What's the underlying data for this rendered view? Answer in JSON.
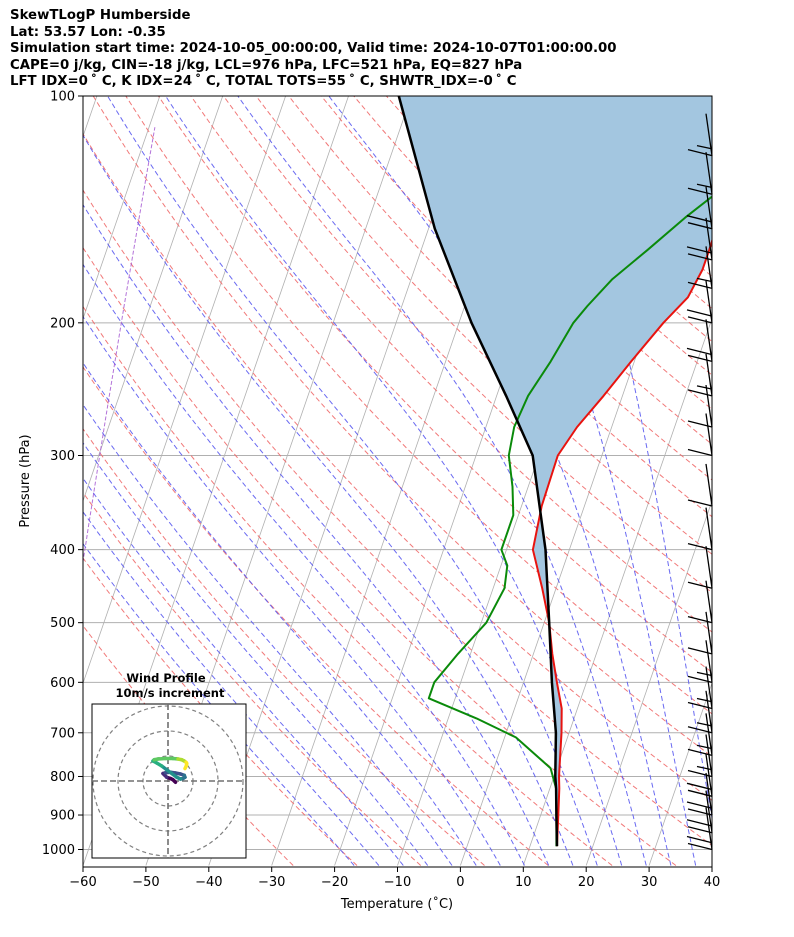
{
  "header": {
    "line1": "SkewTLogP Humberside",
    "line2": "Lat: 53.57   Lon: -0.35",
    "line3": "Simulation start time: 2024-10-05_00:00:00, Valid time: 2024-10-07T01:00:00.00",
    "line4": "CAPE=0 j/kg, CIN=-18 j/kg, LCL=976 hPa, LFC=521 hPa, EQ=827 hPa",
    "line5": "LFT IDX=0 ˚ C, K IDX=24 ˚ C, TOTAL TOTS=55 ˚ C, SHWTR_IDX=-0 ˚ C"
  },
  "chart_data": {
    "type": "skewt-logp",
    "title": "SkewTLogP Humberside",
    "xlabel": "Temperature (˚C)",
    "ylabel": "Pressure (hPa)",
    "xlim": [
      -60,
      40
    ],
    "ylim_hpa": [
      1050,
      100
    ],
    "x_ticks": [
      "−60",
      "−50",
      "−40",
      "−30",
      "−20",
      "−10",
      "0",
      "10",
      "20",
      "30",
      "40"
    ],
    "x_tick_values": [
      -60,
      -50,
      -40,
      -30,
      -20,
      -10,
      0,
      10,
      20,
      30,
      40
    ],
    "y_ticks": [
      "100",
      "200",
      "300",
      "400",
      "500",
      "600",
      "700",
      "800",
      "900",
      "1000"
    ],
    "y_tick_values": [
      100,
      200,
      300,
      400,
      500,
      600,
      700,
      800,
      900,
      1000
    ],
    "colors": {
      "temperature": "#e8130f",
      "dewpoint": "#0a8a0a",
      "parcel": "#000000",
      "cape_fill": "#a3c6e0",
      "isotherm": "#b0b0b0",
      "dry_adiabat": "#f06a6a",
      "moist_adiabat": "#5a5af0",
      "mixing_ratio": "#a050d0"
    },
    "series": [
      {
        "name": "Temperature",
        "points": [
          [
            14.3,
            990
          ],
          [
            12.8,
            900
          ],
          [
            11.5,
            830
          ],
          [
            10.8,
            800
          ],
          [
            8.8,
            700
          ],
          [
            7.5,
            650
          ],
          [
            5.3,
            600
          ],
          [
            3.0,
            550
          ],
          [
            0.8,
            500
          ],
          [
            -2.2,
            450
          ],
          [
            -5.8,
            400
          ],
          [
            -6.8,
            350
          ],
          [
            -7.0,
            300
          ],
          [
            -5.5,
            275
          ],
          [
            -3.0,
            250
          ],
          [
            -0.5,
            225
          ],
          [
            2.5,
            200
          ],
          [
            5.0,
            185
          ],
          [
            5.8,
            170
          ],
          [
            5.8,
            160
          ],
          [
            5.7,
            150
          ],
          [
            7.0,
            140
          ],
          [
            9.5,
            130
          ],
          [
            11.8,
            120
          ],
          [
            13.8,
            110
          ],
          [
            15.3,
            100
          ]
        ]
      },
      {
        "name": "Dewpoint",
        "points": [
          [
            14.2,
            990
          ],
          [
            12.5,
            900
          ],
          [
            11.0,
            830
          ],
          [
            9.0,
            780
          ],
          [
            1.8,
            710
          ],
          [
            -5.5,
            670
          ],
          [
            -14.2,
            630
          ],
          [
            -14.2,
            600
          ],
          [
            -12.0,
            550
          ],
          [
            -9.2,
            500
          ],
          [
            -8.2,
            450
          ],
          [
            -9.0,
            420
          ],
          [
            -10.8,
            400
          ],
          [
            -10.8,
            360
          ],
          [
            -12.5,
            330
          ],
          [
            -14.8,
            300
          ],
          [
            -15.5,
            275
          ],
          [
            -15.0,
            250
          ],
          [
            -13.3,
            225
          ],
          [
            -11.8,
            200
          ],
          [
            -10.5,
            190
          ],
          [
            -8.0,
            175
          ],
          [
            -4.0,
            160
          ],
          [
            0.2,
            145
          ],
          [
            5.5,
            130
          ],
          [
            9.8,
            120
          ],
          [
            13.8,
            110
          ],
          [
            18.0,
            100
          ]
        ]
      },
      {
        "name": "Parcel",
        "points": [
          [
            14.3,
            990
          ],
          [
            12.5,
            900
          ],
          [
            11.0,
            830
          ],
          [
            10.2,
            800
          ],
          [
            7.9,
            700
          ],
          [
            4.5,
            600
          ],
          [
            0.8,
            500
          ],
          [
            -3.8,
            400
          ],
          [
            -11.0,
            300
          ],
          [
            -18.5,
            250
          ],
          [
            -28.0,
            200
          ],
          [
            -39.0,
            150
          ],
          [
            -52.0,
            100
          ]
        ]
      }
    ],
    "wind_barbs": [
      {
        "p": 1000,
        "speed_kt": 20
      },
      {
        "p": 950,
        "speed_kt": 20
      },
      {
        "p": 900,
        "speed_kt": 20
      },
      {
        "p": 850,
        "speed_kt": 20
      },
      {
        "p": 800,
        "speed_kt": 15
      },
      {
        "p": 750,
        "speed_kt": 15
      },
      {
        "p": 700,
        "speed_kt": 15
      },
      {
        "p": 650,
        "speed_kt": 15
      },
      {
        "p": 600,
        "speed_kt": 15
      },
      {
        "p": 550,
        "speed_kt": 10
      },
      {
        "p": 500,
        "speed_kt": 10
      },
      {
        "p": 450,
        "speed_kt": 10
      },
      {
        "p": 400,
        "speed_kt": 10
      },
      {
        "p": 350,
        "speed_kt": 10
      },
      {
        "p": 300,
        "speed_kt": 10
      },
      {
        "p": 275,
        "speed_kt": 10
      },
      {
        "p": 250,
        "speed_kt": 15
      },
      {
        "p": 225,
        "speed_kt": 20
      },
      {
        "p": 200,
        "speed_kt": 20
      },
      {
        "p": 180,
        "speed_kt": 15
      },
      {
        "p": 165,
        "speed_kt": 20
      },
      {
        "p": 150,
        "speed_kt": 20
      },
      {
        "p": 135,
        "speed_kt": 15
      },
      {
        "p": 120,
        "speed_kt": 15
      }
    ],
    "hodograph": {
      "title": "Wind Profile",
      "subtitle": "10m/s increment",
      "rings_ms": [
        10,
        20,
        30
      ],
      "u_ms": [
        3.0,
        2.5,
        2.0,
        1.0,
        -0.5,
        -1.5,
        -2.0,
        -1.0,
        1.0,
        3.0,
        5.0,
        6.5,
        6.8,
        6.0,
        5.0,
        3.5,
        1.5,
        -0.5,
        -2.5,
        -4.5,
        -6.0,
        -5.5,
        -4.0,
        -1.0,
        2.0,
        4.0,
        5.5,
        6.5,
        7.2,
        7.5,
        7.3,
        6.8
      ],
      "v_ms": [
        -0.5,
        0.0,
        0.5,
        1.0,
        1.5,
        2.5,
        3.0,
        3.3,
        3.5,
        3.2,
        2.8,
        2.3,
        1.5,
        1.0,
        0.8,
        1.5,
        3.0,
        4.5,
        6.0,
        7.2,
        8.0,
        8.5,
        8.8,
        9.0,
        9.0,
        8.8,
        8.5,
        8.0,
        7.5,
        7.0,
        6.0,
        5.0
      ]
    }
  }
}
